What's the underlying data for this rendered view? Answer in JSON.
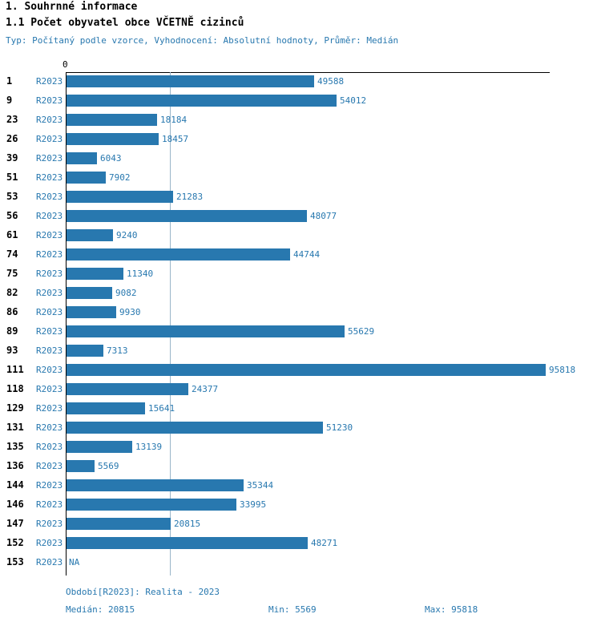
{
  "header": {
    "title": "1. Souhrnné informace",
    "subtitle": "1.1 Počet obyvatel obce VČETNĚ cizinců",
    "meta": "Typ: Počítaný podle vzorce, Vyhodnocení: Absolutní hodnoty, Průměr: Medián"
  },
  "chart_data": {
    "type": "bar",
    "orientation": "horizontal",
    "title": "1.1 Počet obyvatel obce VČETNĚ cizinců",
    "x_origin_label": "0",
    "xlim": [
      0,
      95818
    ],
    "median_reference_line": 20815,
    "series_name": "R2023",
    "categories": [
      "1",
      "9",
      "23",
      "26",
      "39",
      "51",
      "53",
      "56",
      "61",
      "74",
      "75",
      "82",
      "86",
      "89",
      "93",
      "111",
      "118",
      "129",
      "131",
      "135",
      "136",
      "144",
      "146",
      "147",
      "152",
      "153"
    ],
    "values": [
      49588,
      54012,
      18184,
      18457,
      6043,
      7902,
      21283,
      48077,
      9240,
      44744,
      11340,
      9082,
      9930,
      55629,
      7313,
      95818,
      24377,
      15641,
      51230,
      13139,
      5569,
      35344,
      33995,
      20815,
      48271,
      null
    ],
    "value_labels": [
      "49588",
      "54012",
      "18184",
      "18457",
      "6043",
      "7902",
      "21283",
      "48077",
      "9240",
      "44744",
      "11340",
      "9082",
      "9930",
      "55629",
      "7313",
      "95818",
      "24377",
      "15641",
      "51230",
      "13139",
      "5569",
      "35344",
      "33995",
      "20815",
      "48271",
      "NA"
    ],
    "legend_position": "none",
    "grid": "median-line-only"
  },
  "footer": {
    "period": "Období[R2023]: Realita - 2023",
    "median": "Medián: 20815",
    "min": "Min: 5569",
    "max": "Max: 95818"
  },
  "colors": {
    "bar": "#2878af",
    "accent_text": "#2878af",
    "median_line": "#9ab6c9",
    "axis": "#000000"
  }
}
